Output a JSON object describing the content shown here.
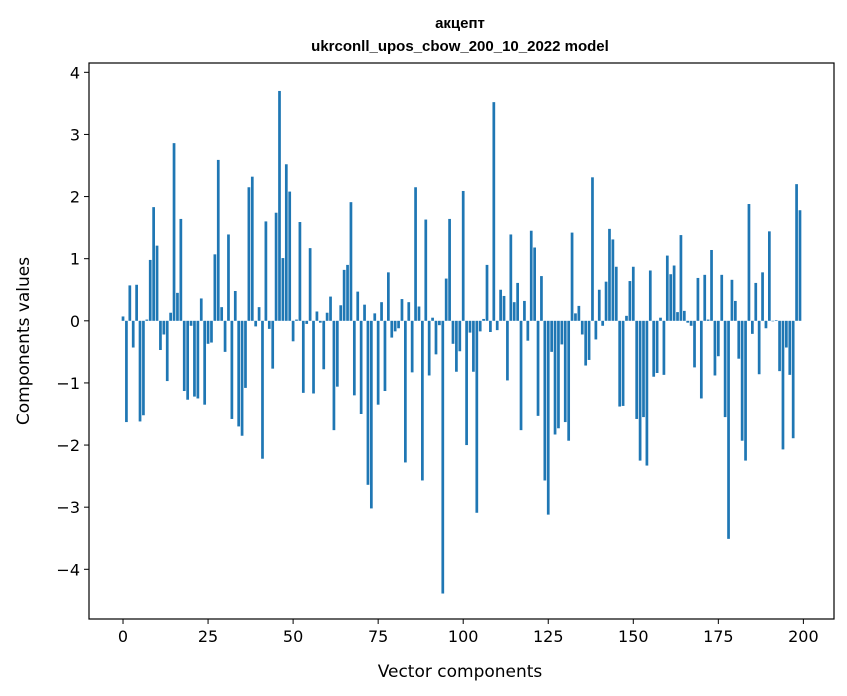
{
  "chart_data": {
    "type": "bar",
    "title": "акцепт",
    "subtitle": "ukrconll_upos_cbow_200_10_2022 model",
    "xlabel": "Vector components",
    "ylabel": "Components values",
    "xlim": [
      -10,
      209
    ],
    "ylim": [
      -4.8,
      4.15
    ],
    "xticks": [
      0,
      25,
      50,
      75,
      100,
      125,
      150,
      175,
      200
    ],
    "xtick_labels": [
      "0",
      "25",
      "50",
      "75",
      "100",
      "125",
      "150",
      "175",
      "200"
    ],
    "yticks": [
      -4,
      -3,
      -2,
      -1,
      0,
      1,
      2,
      3,
      4
    ],
    "ytick_labels": [
      "−4",
      "−3",
      "−2",
      "−1",
      "0",
      "1",
      "2",
      "3",
      "4"
    ],
    "bar_color": "#1f77b4",
    "grid": false,
    "legend": "none",
    "x": [
      0,
      1,
      2,
      3,
      4,
      5,
      6,
      7,
      8,
      9,
      10,
      11,
      12,
      13,
      14,
      15,
      16,
      17,
      18,
      19,
      20,
      21,
      22,
      23,
      24,
      25,
      26,
      27,
      28,
      29,
      30,
      31,
      32,
      33,
      34,
      35,
      36,
      37,
      38,
      39,
      40,
      41,
      42,
      43,
      44,
      45,
      46,
      47,
      48,
      49,
      50,
      51,
      52,
      53,
      54,
      55,
      56,
      57,
      58,
      59,
      60,
      61,
      62,
      63,
      64,
      65,
      66,
      67,
      68,
      69,
      70,
      71,
      72,
      73,
      74,
      75,
      76,
      77,
      78,
      79,
      80,
      81,
      82,
      83,
      84,
      85,
      86,
      87,
      88,
      89,
      90,
      91,
      92,
      93,
      94,
      95,
      96,
      97,
      98,
      99,
      100,
      101,
      102,
      103,
      104,
      105,
      106,
      107,
      108,
      109,
      110,
      111,
      112,
      113,
      114,
      115,
      116,
      117,
      118,
      119,
      120,
      121,
      122,
      123,
      124,
      125,
      126,
      127,
      128,
      129,
      130,
      131,
      132,
      133,
      134,
      135,
      136,
      137,
      138,
      139,
      140,
      141,
      142,
      143,
      144,
      145,
      146,
      147,
      148,
      149,
      150,
      151,
      152,
      153,
      154,
      155,
      156,
      157,
      158,
      159,
      160,
      161,
      162,
      163,
      164,
      165,
      166,
      167,
      168,
      169,
      170,
      171,
      172,
      173,
      174,
      175,
      176,
      177,
      178,
      179,
      180,
      181,
      182,
      183,
      184,
      185,
      186,
      187,
      188,
      189,
      190,
      191,
      192,
      193,
      194,
      195,
      196,
      197,
      198,
      199
    ],
    "values": [
      0.07,
      -1.63,
      0.57,
      -0.43,
      0.58,
      -1.62,
      -1.52,
      0.02,
      0.98,
      1.83,
      1.21,
      -0.47,
      -0.22,
      -0.97,
      0.13,
      2.86,
      0.45,
      1.64,
      -1.13,
      -1.27,
      -0.08,
      -1.22,
      -1.25,
      0.36,
      -1.35,
      -0.37,
      -0.35,
      1.07,
      2.59,
      0.22,
      -0.5,
      1.39,
      -1.58,
      0.48,
      -1.7,
      -1.85,
      -1.08,
      2.15,
      2.32,
      -0.09,
      0.22,
      -2.22,
      1.6,
      -0.13,
      -0.77,
      1.74,
      3.7,
      1.01,
      2.52,
      2.08,
      -0.33,
      0.02,
      1.59,
      -1.16,
      -0.05,
      1.17,
      -1.17,
      0.15,
      -0.03,
      -0.78,
      0.13,
      0.39,
      -1.76,
      -1.06,
      0.25,
      0.82,
      0.9,
      1.91,
      -1.2,
      0.47,
      -1.5,
      0.26,
      -2.64,
      -3.02,
      0.12,
      -1.35,
      0.3,
      -1.13,
      0.78,
      -0.27,
      -0.17,
      -0.12,
      0.35,
      -2.28,
      0.3,
      -0.83,
      2.15,
      0.23,
      -2.57,
      1.63,
      -0.88,
      0.05,
      -0.54,
      -0.07,
      -4.39,
      0.68,
      1.64,
      -0.37,
      -0.82,
      -0.49,
      2.09,
      -2.0,
      -0.19,
      -0.82,
      -3.09,
      -0.17,
      0.03,
      0.9,
      -0.18,
      3.52,
      -0.15,
      0.5,
      0.4,
      -0.96,
      1.39,
      0.3,
      0.61,
      -1.76,
      0.32,
      -0.32,
      1.45,
      1.18,
      -1.53,
      0.72,
      -2.57,
      -3.12,
      -0.5,
      -1.83,
      -1.73,
      -0.38,
      -1.63,
      -1.93,
      1.42,
      0.12,
      0.24,
      -0.22,
      -0.72,
      -0.63,
      2.31,
      -0.3,
      0.5,
      -0.08,
      0.63,
      1.48,
      1.31,
      0.87,
      -1.38,
      -1.37,
      0.08,
      0.64,
      0.87,
      -1.58,
      -2.25,
      -1.55,
      -2.33,
      0.81,
      -0.9,
      -0.84,
      0.05,
      -0.87,
      1.05,
      0.75,
      0.89,
      0.14,
      1.38,
      0.16,
      -0.03,
      -0.08,
      -0.75,
      0.69,
      -1.25,
      0.74,
      0.02,
      1.14,
      -0.88,
      -0.57,
      0.74,
      -1.55,
      -3.51,
      0.66,
      0.32,
      -0.61,
      -1.93,
      -2.25,
      1.88,
      -0.21,
      0.61,
      -0.86,
      0.78,
      -0.12,
      1.44,
      0.0,
      0.01,
      -0.81,
      -2.07,
      -0.43,
      -0.87,
      -1.89,
      2.2,
      1.78
    ]
  }
}
